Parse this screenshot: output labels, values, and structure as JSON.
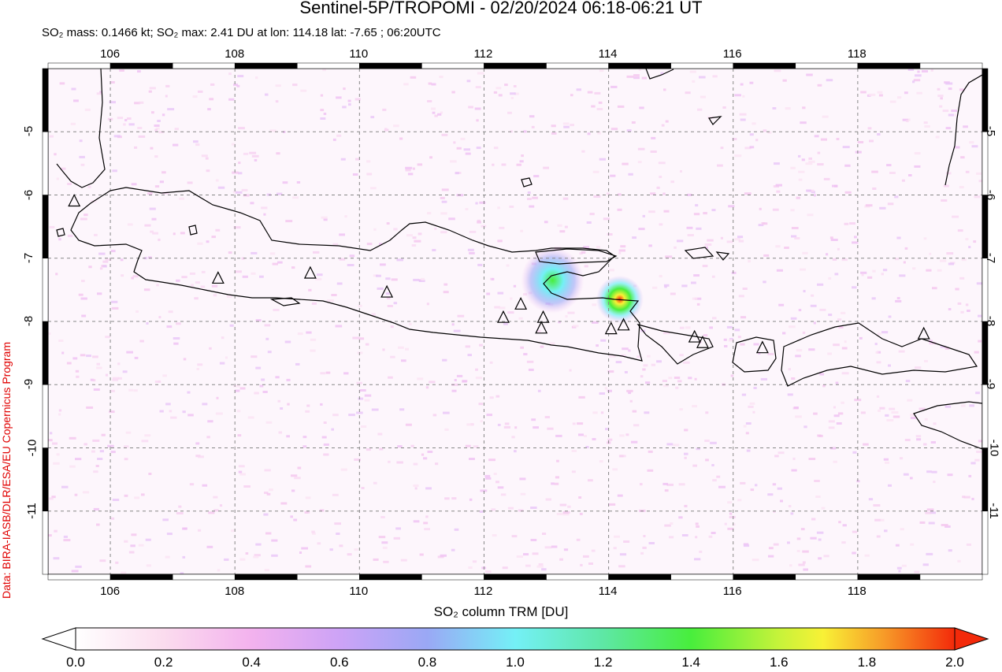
{
  "header": {
    "title": "Sentinel-5P/TROPOMI - 02/20/2024 06:18-06:21 UT",
    "subtitle": "SO₂ mass: 0.1466 kt; SO₂ max: 2.41 DU at lon: 114.18 lat: -7.65 ; 06:20UTC"
  },
  "credit": "Data: BIRA-IASB/DLR/ESA/EU Copernicus Program",
  "map": {
    "lon_ticks": [
      "106",
      "108",
      "110",
      "112",
      "114",
      "116",
      "118"
    ],
    "lat_ticks": [
      "-5",
      "-6",
      "-7",
      "-8",
      "-9",
      "-10",
      "-11"
    ],
    "lon_range": [
      105,
      120
    ],
    "lat_range": [
      -12,
      -4
    ],
    "grid": "dashed",
    "volcano_markers_lonlat": [
      [
        105.42,
        -6.1
      ],
      [
        107.73,
        -7.32
      ],
      [
        109.21,
        -7.24
      ],
      [
        110.44,
        -7.54
      ],
      [
        112.31,
        -7.94
      ],
      [
        112.59,
        -7.73
      ],
      [
        112.95,
        -7.94
      ],
      [
        112.92,
        -8.11
      ],
      [
        114.04,
        -8.12
      ],
      [
        114.24,
        -8.06
      ],
      [
        115.38,
        -8.25
      ],
      [
        115.51,
        -8.34
      ],
      [
        116.47,
        -8.42
      ],
      [
        119.06,
        -8.2
      ]
    ],
    "so2_hotspots": [
      {
        "lon": 113.1,
        "lat": -7.35,
        "max_du": 1.6
      },
      {
        "lon": 114.18,
        "lat": -7.65,
        "max_du": 2.41
      }
    ]
  },
  "colorbar": {
    "title": "SO₂ column TRM [DU]",
    "labels": [
      "0.0",
      "0.2",
      "0.4",
      "0.6",
      "0.8",
      "1.0",
      "1.2",
      "1.4",
      "1.6",
      "1.8",
      "2.0"
    ],
    "colors": [
      "#ffffff",
      "#fbdcee",
      "#f6b7ef",
      "#d0a6f7",
      "#9aa6f5",
      "#74f0f6",
      "#5fe6a8",
      "#48ee3c",
      "#c6f33a",
      "#f8f136",
      "#f79a28",
      "#f32a0a"
    ]
  }
}
